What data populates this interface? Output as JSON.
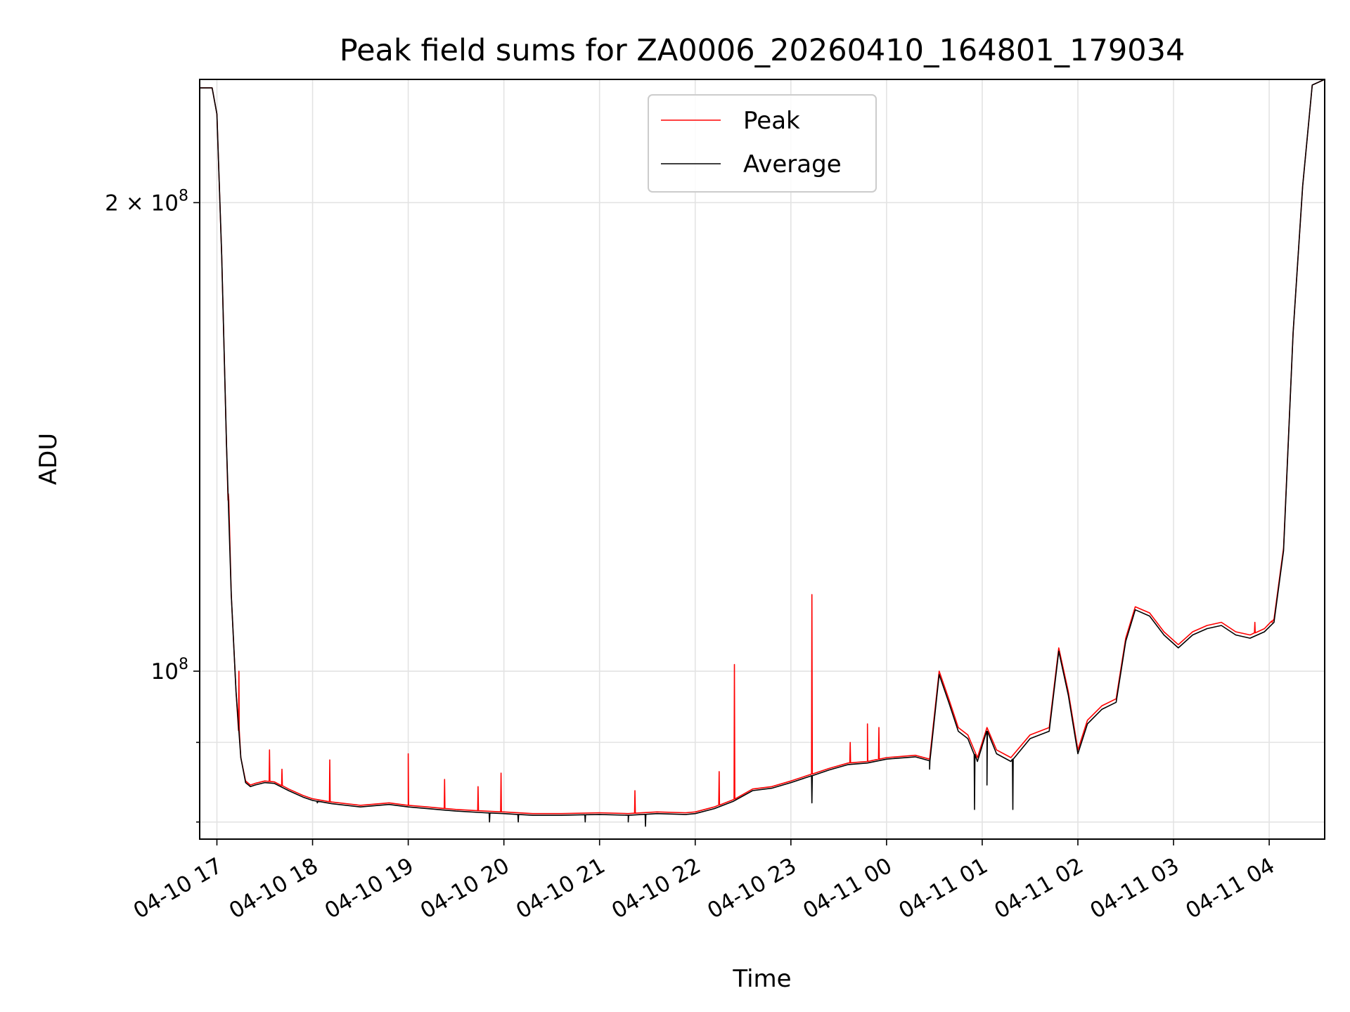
{
  "chart_data": {
    "type": "line",
    "title": "Peak field sums for ZA0006_20260410_164801_179034",
    "xlabel": "Time",
    "ylabel": "ADU",
    "y_scale": "log",
    "ylim": [
      78000000,
      240000000
    ],
    "xlim_hours_since_0410_1700": [
      -0.18,
      11.58
    ],
    "grid": true,
    "legend_position": "upper center",
    "x_ticks": [
      {
        "hour": 0,
        "label": "04-10 17"
      },
      {
        "hour": 1,
        "label": "04-10 18"
      },
      {
        "hour": 2,
        "label": "04-10 19"
      },
      {
        "hour": 3,
        "label": "04-10 20"
      },
      {
        "hour": 4,
        "label": "04-10 21"
      },
      {
        "hour": 5,
        "label": "04-10 22"
      },
      {
        "hour": 6,
        "label": "04-10 23"
      },
      {
        "hour": 7,
        "label": "04-11 00"
      },
      {
        "hour": 8,
        "label": "04-11 01"
      },
      {
        "hour": 9,
        "label": "04-11 02"
      },
      {
        "hour": 10,
        "label": "04-11 03"
      },
      {
        "hour": 11,
        "label": "04-11 04"
      }
    ],
    "y_major_ticks": [
      {
        "value": 100000000,
        "base": "10",
        "exp": "8",
        "mult": ""
      },
      {
        "value": 200000000,
        "base": "10",
        "exp": "8",
        "mult": "2 × "
      }
    ],
    "y_minor_ticks": [
      80000000,
      90000000
    ],
    "series": [
      {
        "name": "Peak",
        "color": "#ff0000",
        "x_hours": [
          -0.18,
          -0.05,
          0.0,
          0.05,
          0.1,
          0.15,
          0.2,
          0.25,
          0.3,
          0.35,
          0.4,
          0.5,
          0.6,
          0.75,
          0.9,
          1.0,
          1.2,
          1.5,
          1.8,
          2.0,
          2.2,
          2.5,
          2.8,
          3.0,
          3.3,
          3.6,
          4.0,
          4.3,
          4.6,
          4.9,
          5.0,
          5.2,
          5.4,
          5.6,
          5.8,
          6.0,
          6.2,
          6.4,
          6.6,
          6.8,
          7.0,
          7.3,
          7.45,
          7.55,
          7.65,
          7.75,
          7.85,
          7.95,
          8.05,
          8.15,
          8.3,
          8.5,
          8.7,
          8.8,
          8.9,
          9.0,
          9.1,
          9.25,
          9.4,
          9.5,
          9.6,
          9.75,
          9.9,
          10.05,
          10.2,
          10.35,
          10.5,
          10.65,
          10.8,
          10.95,
          11.05,
          11.15,
          11.25,
          11.35,
          11.45,
          11.58
        ],
        "y_values": [
          237000000,
          237000000,
          228000000,
          185000000,
          140000000,
          112000000,
          97000000,
          88000000,
          85000000,
          84500000,
          84700000,
          85000000,
          84900000,
          84000000,
          83200000,
          82800000,
          82400000,
          82000000,
          82300000,
          82000000,
          81800000,
          81500000,
          81300000,
          81200000,
          81000000,
          81000000,
          81100000,
          81000000,
          81200000,
          81100000,
          81200000,
          81800000,
          82700000,
          84000000,
          84300000,
          85000000,
          85800000,
          86600000,
          87300000,
          87500000,
          88000000,
          88300000,
          87800000,
          100000000,
          96000000,
          92000000,
          91000000,
          88000000,
          92000000,
          89000000,
          88000000,
          91000000,
          92000000,
          103500000,
          97000000,
          89000000,
          93000000,
          95000000,
          96000000,
          105000000,
          110000000,
          109000000,
          106000000,
          104000000,
          106000000,
          107000000,
          107500000,
          106000000,
          105500000,
          106500000,
          108000000,
          120000000,
          165000000,
          205000000,
          238000000,
          240000000
        ],
        "spikes": [
          {
            "x_hours": 0.12,
            "value": 130000000
          },
          {
            "x_hours": 0.23,
            "value": 100000000
          },
          {
            "x_hours": 0.55,
            "value": 89000000
          },
          {
            "x_hours": 0.68,
            "value": 86500000
          },
          {
            "x_hours": 1.18,
            "value": 87700000
          },
          {
            "x_hours": 2.0,
            "value": 88500000
          },
          {
            "x_hours": 2.38,
            "value": 85200000
          },
          {
            "x_hours": 2.73,
            "value": 84300000
          },
          {
            "x_hours": 2.97,
            "value": 86000000
          },
          {
            "x_hours": 4.37,
            "value": 83800000
          },
          {
            "x_hours": 5.25,
            "value": 86200000
          },
          {
            "x_hours": 5.41,
            "value": 101000000
          },
          {
            "x_hours": 6.22,
            "value": 112000000
          },
          {
            "x_hours": 6.62,
            "value": 90000000
          },
          {
            "x_hours": 6.8,
            "value": 92500000
          },
          {
            "x_hours": 6.92,
            "value": 92000000
          },
          {
            "x_hours": 10.85,
            "value": 107500000
          },
          {
            "x_hours": 11.03,
            "value": 107500000
          }
        ]
      },
      {
        "name": "Average",
        "color": "#000000",
        "x_hours": [
          -0.18,
          -0.05,
          0.0,
          0.05,
          0.1,
          0.15,
          0.2,
          0.25,
          0.3,
          0.35,
          0.4,
          0.5,
          0.6,
          0.75,
          0.9,
          1.0,
          1.2,
          1.5,
          1.8,
          2.0,
          2.2,
          2.5,
          2.8,
          3.0,
          3.3,
          3.6,
          4.0,
          4.3,
          4.6,
          4.9,
          5.0,
          5.2,
          5.4,
          5.6,
          5.8,
          6.0,
          6.2,
          6.4,
          6.6,
          6.8,
          7.0,
          7.3,
          7.45,
          7.55,
          7.65,
          7.75,
          7.85,
          7.95,
          8.05,
          8.15,
          8.3,
          8.5,
          8.7,
          8.8,
          8.9,
          9.0,
          9.1,
          9.25,
          9.4,
          9.5,
          9.6,
          9.75,
          9.9,
          10.05,
          10.2,
          10.35,
          10.5,
          10.65,
          10.8,
          10.95,
          11.05,
          11.15,
          11.25,
          11.35,
          11.45,
          11.58
        ],
        "y_values": [
          237000000,
          237000000,
          228000000,
          185000000,
          140000000,
          112000000,
          97000000,
          88000000,
          84800000,
          84300000,
          84500000,
          84800000,
          84700000,
          83800000,
          83000000,
          82600000,
          82200000,
          81800000,
          82100000,
          81800000,
          81600000,
          81300000,
          81100000,
          81000000,
          80800000,
          80800000,
          80900000,
          80800000,
          81000000,
          80900000,
          81000000,
          81600000,
          82500000,
          83800000,
          84100000,
          84800000,
          85600000,
          86400000,
          87100000,
          87300000,
          87800000,
          88100000,
          87600000,
          99500000,
          95500000,
          91500000,
          90500000,
          87500000,
          91500000,
          88500000,
          87500000,
          90500000,
          91500000,
          103000000,
          96500000,
          88500000,
          92500000,
          94500000,
          95500000,
          104500000,
          109500000,
          108500000,
          105500000,
          103500000,
          105500000,
          106500000,
          107000000,
          105500000,
          105000000,
          106000000,
          107500000,
          119500000,
          165000000,
          205000000,
          238000000,
          240000000
        ],
        "dips": [
          {
            "x_hours": 1.05,
            "value": 82300000
          },
          {
            "x_hours": 2.85,
            "value": 80000000
          },
          {
            "x_hours": 3.15,
            "value": 80000000
          },
          {
            "x_hours": 3.85,
            "value": 80000000
          },
          {
            "x_hours": 4.3,
            "value": 80000000
          },
          {
            "x_hours": 4.48,
            "value": 79500000
          },
          {
            "x_hours": 6.22,
            "value": 82300000
          },
          {
            "x_hours": 7.45,
            "value": 86500000
          },
          {
            "x_hours": 7.92,
            "value": 81500000
          },
          {
            "x_hours": 8.32,
            "value": 81500000
          },
          {
            "x_hours": 8.05,
            "value": 84500000
          }
        ]
      }
    ]
  }
}
